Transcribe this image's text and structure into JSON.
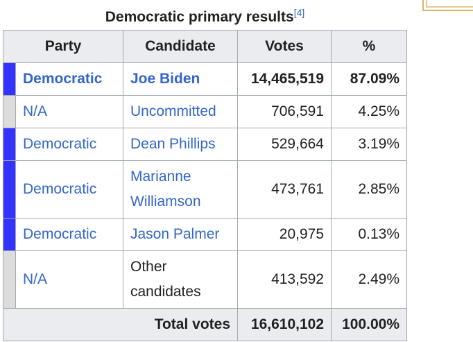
{
  "caption": {
    "title": "Democratic primary results",
    "ref": "[4]"
  },
  "table": {
    "headers": {
      "party": "Party",
      "candidate": "Candidate",
      "votes": "Votes",
      "pct": "%"
    },
    "rows": [
      {
        "party": "Democratic",
        "candidate_lines": [
          "Joe Biden"
        ],
        "votes": "14,465,519",
        "pct": "87.09%",
        "party_color": "#3333ff",
        "winner": true,
        "party_link": true,
        "candidate_link": true
      },
      {
        "party": "N/A",
        "candidate_lines": [
          "Uncommitted"
        ],
        "votes": "706,591",
        "pct": "4.25%",
        "party_color": "#dcdcdc",
        "winner": false,
        "party_link": true,
        "candidate_link": true
      },
      {
        "party": "Democratic",
        "candidate_lines": [
          "Dean Phillips"
        ],
        "votes": "529,664",
        "pct": "3.19%",
        "party_color": "#3333ff",
        "winner": false,
        "party_link": true,
        "candidate_link": true
      },
      {
        "party": "Democratic",
        "candidate_lines": [
          "Marianne",
          "Williamson"
        ],
        "votes": "473,761",
        "pct": "2.85%",
        "party_color": "#3333ff",
        "winner": false,
        "party_link": true,
        "candidate_link": true
      },
      {
        "party": "Democratic",
        "candidate_lines": [
          "Jason Palmer"
        ],
        "votes": "20,975",
        "pct": "0.13%",
        "party_color": "#3333ff",
        "winner": false,
        "party_link": true,
        "candidate_link": true
      },
      {
        "party": "N/A",
        "candidate_lines": [
          "Other",
          "candidates"
        ],
        "votes": "413,592",
        "pct": "2.49%",
        "party_color": "#dcdcdc",
        "winner": false,
        "party_link": true,
        "candidate_link": false
      }
    ],
    "total": {
      "label": "Total votes",
      "votes": "16,610,102",
      "pct": "100.00%"
    }
  }
}
